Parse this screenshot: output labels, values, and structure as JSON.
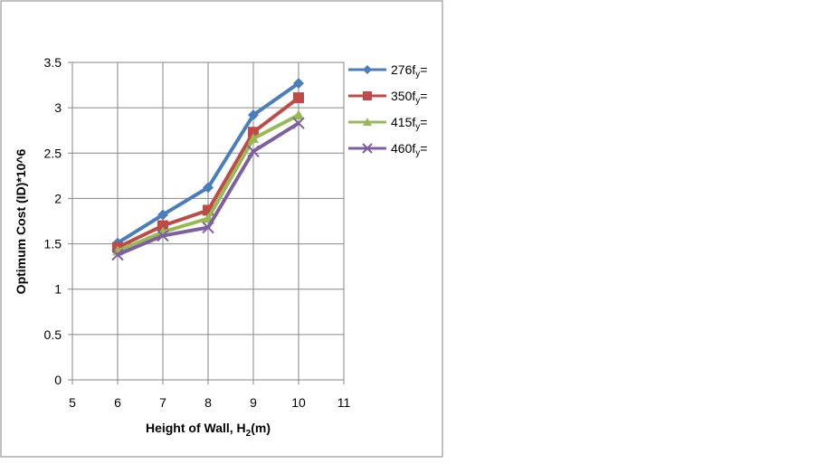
{
  "chart_data": {
    "type": "line",
    "xlabel_main": "Height of Wall, H",
    "xlabel_sub": "2",
    "xlabel_tail": "(m)",
    "ylabel": "Optimum Cost (ID)*10^6",
    "xlim": [
      5,
      11
    ],
    "ylim": [
      0,
      3.5
    ],
    "x_ticks": [
      "5",
      "6",
      "7",
      "8",
      "9",
      "10",
      "11"
    ],
    "y_ticks": [
      "0",
      "0.5",
      "1",
      "1.5",
      "2",
      "2.5",
      "3",
      "3.5"
    ],
    "grid": true,
    "legend_position": "right",
    "x": [
      6,
      7,
      8,
      9,
      10
    ],
    "series": [
      {
        "name": "276",
        "name_sub": "y",
        "name_sub_prefix": "f",
        "name_tail": "=",
        "color": "#4a7ebb",
        "marker": "diamond",
        "values": [
          1.51,
          1.82,
          2.12,
          2.92,
          3.27
        ]
      },
      {
        "name": "350",
        "name_sub": "y",
        "name_sub_prefix": "f",
        "name_tail": "=",
        "color": "#be4b48",
        "marker": "square",
        "values": [
          1.46,
          1.7,
          1.87,
          2.73,
          3.11
        ]
      },
      {
        "name": "415",
        "name_sub": "y",
        "name_sub_prefix": "f",
        "name_tail": "=",
        "color": "#98b954",
        "marker": "triangle",
        "values": [
          1.42,
          1.63,
          1.78,
          2.66,
          2.92
        ]
      },
      {
        "name": "460",
        "name_sub": "y",
        "name_sub_prefix": "f",
        "name_tail": "=",
        "color": "#7d60a0",
        "marker": "x",
        "values": [
          1.38,
          1.59,
          1.68,
          2.52,
          2.83
        ]
      }
    ]
  }
}
